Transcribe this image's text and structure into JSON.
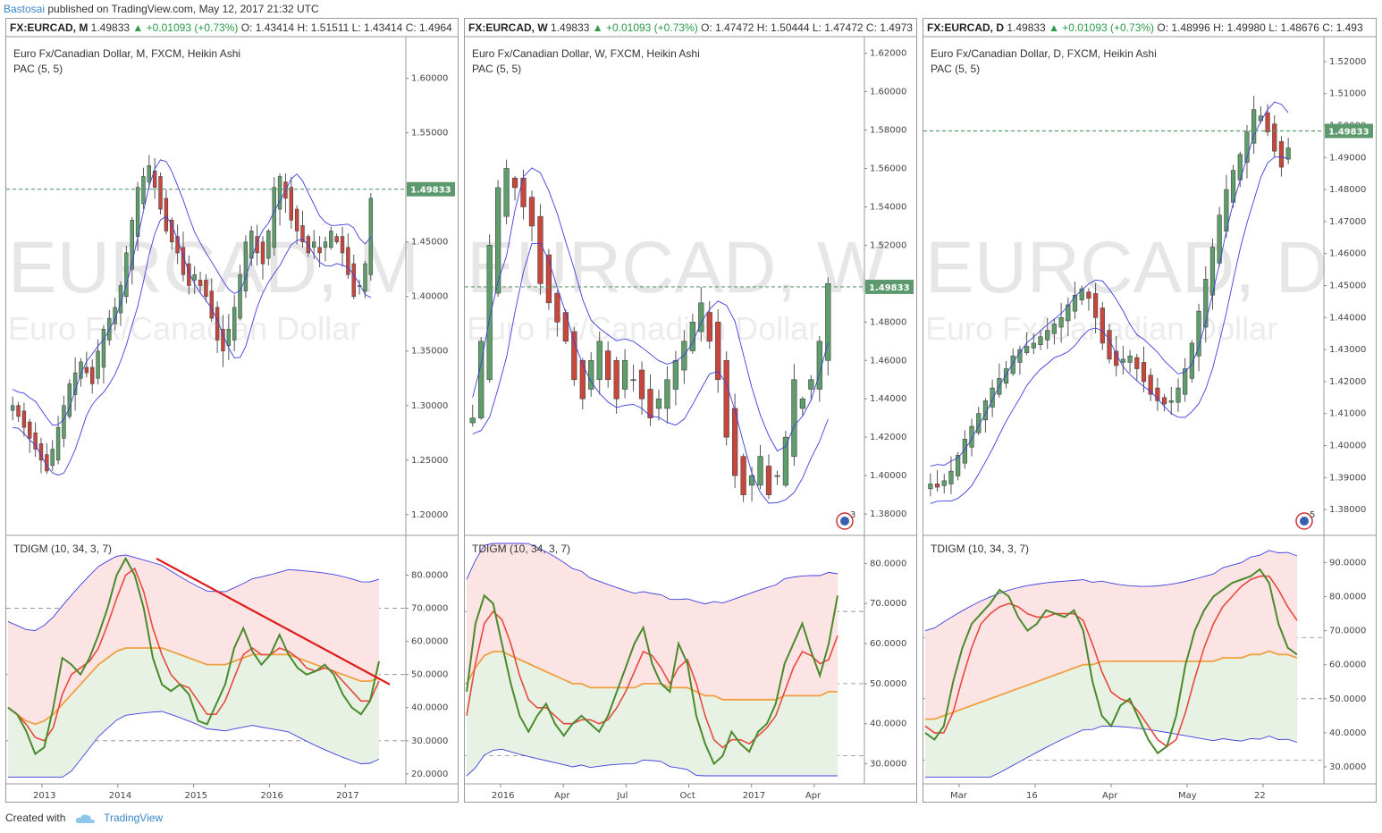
{
  "header": {
    "author": "Bastosai",
    "published": "published on TradingView.com, May 12, 2017 21:32 UTC"
  },
  "footer": {
    "created_with": "Created with",
    "brand": "TradingView"
  },
  "colors": {
    "up": "#5e9e6a",
    "down": "#c9463d",
    "pac": "#3e3ee0",
    "last": "#5c9a6e",
    "tdi_green": "#4a8a2a",
    "tdi_red": "#e8493e",
    "tdi_orange": "#f0a040",
    "band_pink": "#fde4e4",
    "band_green": "#e7f2e4",
    "trend": "#e01a1a"
  },
  "panels": [
    {
      "symbol": "FX:EURCAD, M",
      "last": "1.49833",
      "change": "▲ +0.01093 (+0.73%)",
      "o": "O: 1.43414",
      "h": "H: 1.51511",
      "l": "L: 1.43414",
      "c": "C: 1.4964",
      "title": "Euro Fx/Canadian Dollar, M, FXCM, Heikin Ashi",
      "pac": "PAC (5, 5)",
      "watermark": "EURCAD, M",
      "watermark2": "Euro Fx/Canadian Dollar",
      "tdi_label": "TDIGM (10, 34, 3, 7)",
      "badge": "",
      "price_ticks": [
        "1.60000",
        "1.55000",
        "1.50000",
        "1.45000",
        "1.40000",
        "1.35000",
        "1.30000",
        "1.25000",
        "1.20000"
      ],
      "tdi_ticks": [
        "80.0000",
        "70.0000",
        "60.0000",
        "50.0000",
        "40.0000",
        "30.0000",
        "20.0000"
      ],
      "time_ticks": [
        "2013",
        "2014",
        "2015",
        "2016",
        "2017"
      ]
    },
    {
      "symbol": "FX:EURCAD, W",
      "last": "1.49833",
      "change": "▲ +0.01093 (+0.73%)",
      "o": "O: 1.47472",
      "h": "H: 1.50444",
      "l": "L: 1.47472",
      "c": "C: 1.4973",
      "title": "Euro Fx/Canadian Dollar, W, FXCM, Heikin Ashi",
      "pac": "PAC (5, 5)",
      "watermark": "EURCAD, W",
      "watermark2": "Euro Fx/Canadian Dollar",
      "tdi_label": "TDIGM (10, 34, 3, 7)",
      "badge": "3",
      "price_ticks": [
        "1.62000",
        "1.60000",
        "1.58000",
        "1.56000",
        "1.54000",
        "1.52000",
        "1.50000",
        "1.48000",
        "1.46000",
        "1.44000",
        "1.42000",
        "1.40000",
        "1.38000"
      ],
      "tdi_ticks": [
        "80.0000",
        "70.0000",
        "60.0000",
        "50.0000",
        "40.0000",
        "30.0000"
      ],
      "time_ticks": [
        "2016",
        "Apr",
        "Jul",
        "Oct",
        "2017",
        "Apr"
      ]
    },
    {
      "symbol": "FX:EURCAD, D",
      "last": "1.49833",
      "change": "▲ +0.01093 (+0.73%)",
      "o": "O: 1.48996",
      "h": "H: 1.49980",
      "l": "L: 1.48676",
      "c": "C: 1.493",
      "title": "Euro Fx/Canadian Dollar, D, FXCM, Heikin Ashi",
      "pac": "PAC (5, 5)",
      "watermark": "EURCAD, D",
      "watermark2": "Euro Fx/Canadian Dollar",
      "tdi_label": "TDIGM (10, 34, 3, 7)",
      "badge": "5",
      "price_ticks": [
        "1.52000",
        "1.51000",
        "1.50000",
        "1.49000",
        "1.48000",
        "1.47000",
        "1.46000",
        "1.45000",
        "1.44000",
        "1.43000",
        "1.42000",
        "1.41000",
        "1.40000",
        "1.39000",
        "1.38000"
      ],
      "tdi_ticks": [
        "90.0000",
        "80.0000",
        "70.0000",
        "60.0000",
        "50.0000",
        "40.0000",
        "30.0000"
      ],
      "time_ticks": [
        "Mar",
        "16",
        "Apr",
        "May",
        "22"
      ]
    }
  ],
  "chart_data": [
    {
      "type": "candlestick",
      "timeframe": "M",
      "title": "Euro Fx/Canadian Dollar, M, FXCM, Heikin Ashi",
      "ylim": [
        1.19,
        1.63
      ],
      "last_price": 1.49833,
      "closes": [
        1.3,
        1.29,
        1.28,
        1.27,
        1.26,
        1.25,
        1.24,
        1.26,
        1.28,
        1.3,
        1.32,
        1.33,
        1.34,
        1.33,
        1.32,
        1.35,
        1.37,
        1.38,
        1.39,
        1.41,
        1.44,
        1.47,
        1.5,
        1.51,
        1.52,
        1.5,
        1.48,
        1.46,
        1.45,
        1.44,
        1.42,
        1.41,
        1.42,
        1.41,
        1.4,
        1.38,
        1.36,
        1.35,
        1.37,
        1.39,
        1.42,
        1.45,
        1.46,
        1.44,
        1.43,
        1.46,
        1.5,
        1.51,
        1.49,
        1.47,
        1.46,
        1.45,
        1.44,
        1.45,
        1.44,
        1.45,
        1.46,
        1.45,
        1.44,
        1.42,
        1.4,
        1.41,
        1.43,
        1.49
      ],
      "tdi": {
        "ylim": [
          17,
          92
        ],
        "green": [
          40,
          38,
          33,
          26,
          28,
          40,
          55,
          53,
          50,
          55,
          62,
          70,
          80,
          85,
          80,
          70,
          55,
          47,
          45,
          47,
          44,
          36,
          35,
          41,
          47,
          58,
          64,
          57,
          53,
          56,
          62,
          56,
          52,
          50,
          51,
          53,
          50,
          44,
          40,
          38,
          42,
          54
        ],
        "red": [
          40,
          38,
          35,
          31,
          30,
          34,
          44,
          50,
          52,
          54,
          58,
          65,
          73,
          80,
          82,
          75,
          64,
          56,
          50,
          47,
          46,
          42,
          38,
          38,
          42,
          49,
          56,
          58,
          56,
          56,
          58,
          57,
          55,
          52,
          51,
          52,
          51,
          48,
          45,
          42,
          42,
          48
        ],
        "orange": [
          40,
          38,
          36,
          35,
          36,
          38,
          41,
          44,
          47,
          50,
          53,
          55,
          57,
          58,
          58,
          58,
          58,
          58,
          57,
          56,
          55,
          54,
          53,
          53,
          53,
          54,
          55,
          56,
          56,
          56,
          56,
          56,
          55,
          54,
          53,
          52,
          51,
          50,
          49,
          48,
          48,
          49
        ]
      }
    },
    {
      "type": "candlestick",
      "timeframe": "W",
      "title": "Euro Fx/Canadian Dollar, W, FXCM, Heikin Ashi",
      "ylim": [
        1.374,
        1.624
      ],
      "last_price": 1.49833,
      "closes": [
        1.43,
        1.47,
        1.52,
        1.55,
        1.56,
        1.55,
        1.54,
        1.53,
        1.5,
        1.49,
        1.48,
        1.47,
        1.45,
        1.44,
        1.46,
        1.47,
        1.45,
        1.44,
        1.46,
        1.45,
        1.44,
        1.43,
        1.44,
        1.45,
        1.46,
        1.47,
        1.48,
        1.49,
        1.47,
        1.45,
        1.42,
        1.4,
        1.39,
        1.4,
        1.41,
        1.39,
        1.4,
        1.42,
        1.45,
        1.44,
        1.45,
        1.47,
        1.5
      ],
      "tdi": {
        "ylim": [
          25,
          87
        ],
        "green": [
          48,
          65,
          72,
          70,
          60,
          50,
          42,
          38,
          42,
          45,
          40,
          37,
          40,
          42,
          40,
          38,
          42,
          48,
          54,
          60,
          64,
          55,
          50,
          48,
          60,
          55,
          42,
          35,
          30,
          32,
          38,
          35,
          33,
          38,
          40,
          45,
          55,
          60,
          65,
          58,
          52,
          60,
          72
        ],
        "red": [
          42,
          55,
          65,
          68,
          66,
          60,
          52,
          46,
          44,
          44,
          42,
          40,
          40,
          41,
          41,
          40,
          41,
          44,
          48,
          53,
          58,
          57,
          54,
          50,
          54,
          56,
          50,
          42,
          36,
          34,
          36,
          36,
          35,
          37,
          39,
          42,
          48,
          54,
          58,
          57,
          55,
          56,
          62
        ],
        "orange": [
          50,
          54,
          57,
          58,
          58,
          57,
          56,
          55,
          54,
          53,
          52,
          51,
          50,
          50,
          49,
          49,
          49,
          49,
          49,
          49,
          50,
          50,
          50,
          49,
          49,
          49,
          48,
          47,
          47,
          46,
          46,
          46,
          46,
          46,
          46,
          46,
          47,
          47,
          47,
          47,
          47,
          48,
          48
        ]
      }
    },
    {
      "type": "candlestick",
      "timeframe": "D",
      "title": "Euro Fx/Canadian Dollar, D, FXCM, Heikin Ashi",
      "ylim": [
        1.375,
        1.525
      ],
      "last_price": 1.49833,
      "closes": [
        1.388,
        1.387,
        1.389,
        1.392,
        1.397,
        1.402,
        1.406,
        1.41,
        1.414,
        1.418,
        1.421,
        1.424,
        1.428,
        1.43,
        1.431,
        1.432,
        1.434,
        1.436,
        1.438,
        1.44,
        1.444,
        1.447,
        1.449,
        1.446,
        1.44,
        1.432,
        1.427,
        1.425,
        1.427,
        1.428,
        1.424,
        1.42,
        1.416,
        1.414,
        1.413,
        1.414,
        1.418,
        1.424,
        1.432,
        1.442,
        1.452,
        1.462,
        1.472,
        1.48,
        1.486,
        1.491,
        1.498,
        1.505,
        1.503,
        1.498,
        1.492,
        1.487,
        1.493
      ],
      "tdi": {
        "ylim": [
          25,
          98
        ],
        "green": [
          40,
          38,
          42,
          55,
          65,
          72,
          75,
          78,
          82,
          80,
          74,
          70,
          72,
          76,
          75,
          74,
          76,
          70,
          55,
          45,
          42,
          48,
          50,
          44,
          38,
          34,
          36,
          45,
          60,
          70,
          76,
          80,
          82,
          84,
          85,
          86,
          88,
          84,
          72,
          65,
          63
        ],
        "red": [
          42,
          40,
          40,
          46,
          56,
          65,
          72,
          75,
          77,
          78,
          77,
          75,
          74,
          74,
          75,
          75,
          75,
          73,
          66,
          58,
          52,
          50,
          49,
          46,
          42,
          38,
          36,
          38,
          46,
          56,
          65,
          72,
          77,
          80,
          83,
          85,
          86,
          86,
          82,
          77,
          73
        ],
        "orange": [
          44,
          44,
          45,
          46,
          47,
          48,
          49,
          50,
          51,
          52,
          53,
          54,
          55,
          56,
          57,
          58,
          59,
          60,
          60,
          61,
          61,
          61,
          61,
          61,
          61,
          61,
          61,
          61,
          61,
          61,
          61,
          61,
          62,
          62,
          62,
          63,
          63,
          64,
          63,
          63,
          62
        ]
      }
    }
  ]
}
